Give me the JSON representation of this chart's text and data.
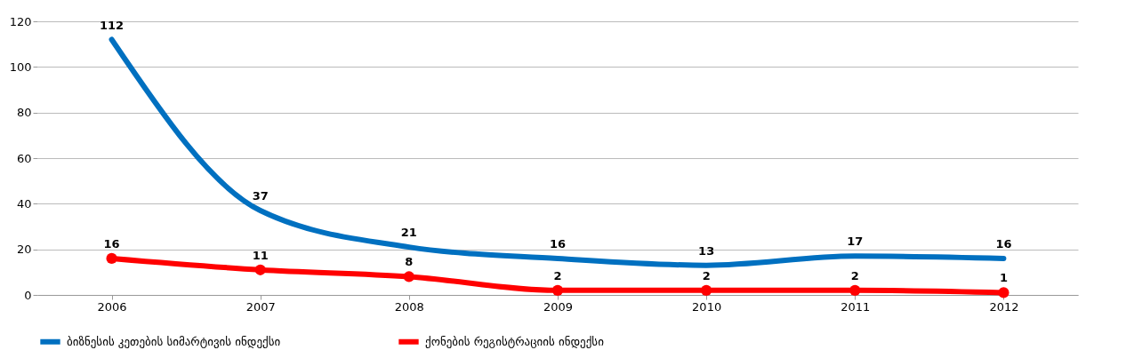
{
  "chart_data": {
    "type": "line",
    "categories": [
      "2006",
      "2007",
      "2008",
      "2009",
      "2010",
      "2011",
      "2012"
    ],
    "series": [
      {
        "name": "ბიზნესის კეთების სიმარტივის ინდექსი",
        "color": "#0070c0",
        "values": [
          112,
          37,
          21,
          16,
          13,
          17,
          16
        ],
        "marker": "none"
      },
      {
        "name": "ქონების რეგისტრაციის ინდექსი",
        "color": "#ff0000",
        "values": [
          16,
          11,
          8,
          2,
          2,
          2,
          1
        ],
        "marker": "circle"
      }
    ],
    "ylim": [
      0,
      120
    ],
    "yticks": [
      0,
      20,
      40,
      60,
      80,
      100,
      120
    ],
    "grid": "y",
    "legend": "bottom",
    "data_labels": true,
    "line_style": "solid"
  }
}
